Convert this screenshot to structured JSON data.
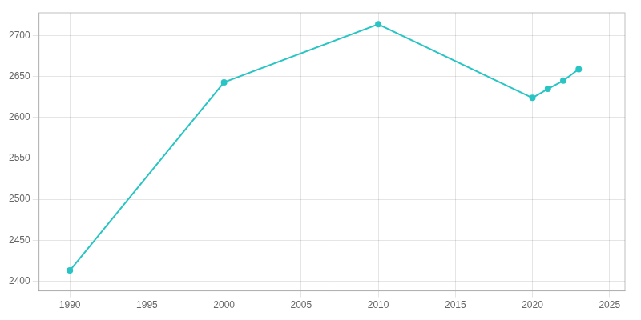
{
  "chart_data": {
    "type": "line",
    "x": [
      1990,
      2000,
      2010,
      2020,
      2021,
      2022,
      2023
    ],
    "values": [
      2413,
      2643,
      2714,
      2624,
      2635,
      2645,
      2659
    ],
    "color": "#29c4c4",
    "marker": "circle",
    "xlim": [
      1988,
      2026
    ],
    "ylim": [
      2388,
      2728
    ],
    "xticks": [
      1990,
      1995,
      2000,
      2005,
      2010,
      2015,
      2020,
      2025
    ],
    "yticks": [
      2400,
      2450,
      2500,
      2550,
      2600,
      2650,
      2700
    ],
    "grid": true
  }
}
